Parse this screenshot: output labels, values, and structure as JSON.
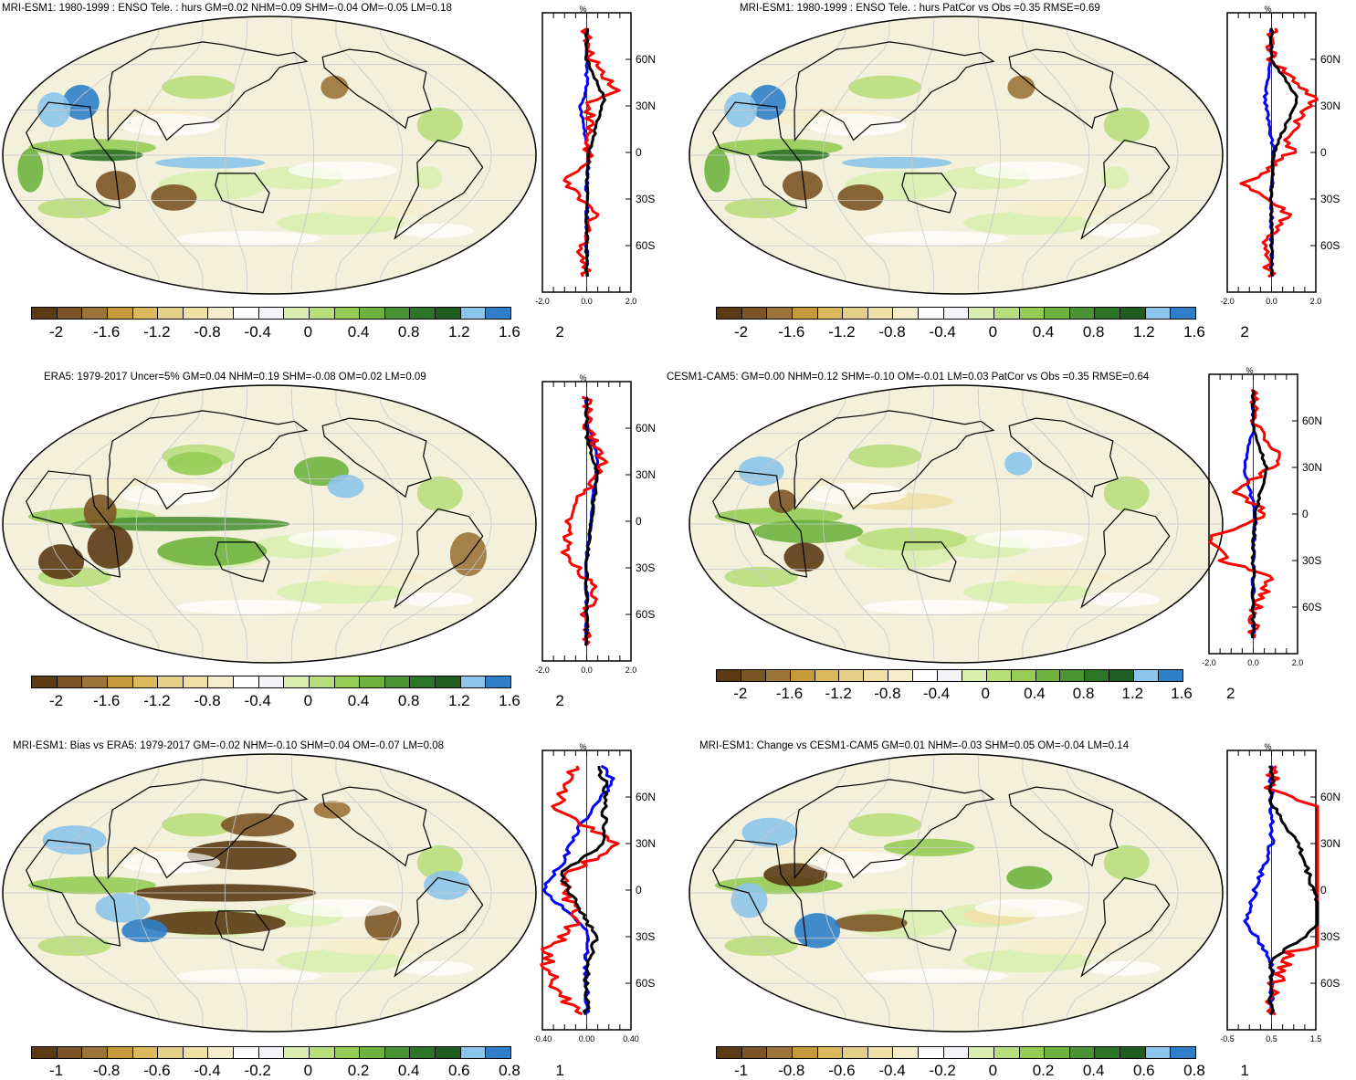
{
  "palette": [
    "#5b3a14",
    "#7b5526",
    "#9a7438",
    "#c49a3a",
    "#d9b95c",
    "#e6cf87",
    "#efe0a8",
    "#f6edcc",
    "#ffffff",
    "#f4f4f8",
    "#d9eeb0",
    "#b9de7c",
    "#95cc55",
    "#6fb23f",
    "#4a9233",
    "#2c7426",
    "#1f5d20",
    "#8dc4ea",
    "#2f7fc8"
  ],
  "profile_colors": {
    "red": "#ff0000",
    "blue": "#0000ff",
    "black": "#000000"
  },
  "panels": [
    {
      "id": "p1",
      "title": "MRI-ESM1: 1980-1999 : ENSO Tele. : hurs GM=0.02 NHM=0.09 SHM=-0.04 OM=-0.05 LM=0.18",
      "cb_labels": [
        "-2",
        "-1.6",
        "-1.2",
        "-0.8",
        "-0.4",
        "0",
        "0.4",
        "0.8",
        "1.2",
        "1.6",
        "2"
      ],
      "lat_labels": [
        "60N",
        "30N",
        "0",
        "30S",
        "60S"
      ],
      "x_labels": [
        "-2.0",
        "0.0",
        "2.0"
      ],
      "unit": "%"
    },
    {
      "id": "p2",
      "title": "MRI-ESM1: 1980-1999 : ENSO Tele. : hurs PatCor vs Obs =0.35 RMSE=0.69",
      "cb_labels": [
        "-2",
        "-1.6",
        "-1.2",
        "-0.8",
        "-0.4",
        "0",
        "0.4",
        "0.8",
        "1.2",
        "1.6",
        "2"
      ],
      "lat_labels": [
        "60N",
        "30N",
        "0",
        "30S",
        "60S"
      ],
      "x_labels": [
        "-2.0",
        "0.0",
        "2.0"
      ],
      "unit": "%"
    },
    {
      "id": "p3",
      "title": "ERA5: 1979-2017 Uncer=5% GM=0.04 NHM=0.19 SHM=-0.08 OM=0.02 LM=0.09",
      "cb_labels": [
        "-2",
        "-1.6",
        "-1.2",
        "-0.8",
        "-0.4",
        "0",
        "0.4",
        "0.8",
        "1.2",
        "1.6",
        "2"
      ],
      "lat_labels": [
        "60N",
        "30N",
        "0",
        "30S",
        "60S"
      ],
      "x_labels": [
        "-2.0",
        "0.0",
        "2.0"
      ],
      "unit": "%"
    },
    {
      "id": "p4",
      "title": "CESM1-CAM5: GM=0.00 NHM=0.12 SHM=-0.10 OM=-0.01 LM=0.03 PatCor vs Obs =0.35 RMSE=0.64",
      "cb_labels": [
        "-2",
        "-1.6",
        "-1.2",
        "-0.8",
        "-0.4",
        "0",
        "0.4",
        "0.8",
        "1.2",
        "1.6",
        "2"
      ],
      "lat_labels": [
        "60N",
        "30N",
        "0",
        "30S",
        "60S"
      ],
      "x_labels": [
        "-2.0",
        "0.0",
        "2.0"
      ],
      "unit": "%"
    },
    {
      "id": "p5",
      "title": "MRI-ESM1: Bias vs ERA5: 1979-2017 GM=-0.02 NHM=-0.10 SHM=0.04 OM=-0.07 LM=0.08",
      "cb_labels": [
        "-1",
        "-0.8",
        "-0.6",
        "-0.4",
        "-0.2",
        "0",
        "0.2",
        "0.4",
        "0.6",
        "0.8",
        "1"
      ],
      "lat_labels": [
        "60N",
        "30N",
        "0",
        "30S",
        "60S"
      ],
      "x_labels": [
        "-0.40",
        "0.00",
        "0.40"
      ],
      "unit": "%"
    },
    {
      "id": "p6",
      "title": "MRI-ESM1: Change vs CESM1-CAM5 GM=0.01 NHM=-0.03 SHM=0.05 OM=-0.04 LM=0.14",
      "cb_labels": [
        "-1",
        "-0.8",
        "-0.6",
        "-0.4",
        "-0.2",
        "0",
        "0.2",
        "0.4",
        "0.6",
        "0.8",
        "1"
      ],
      "lat_labels": [
        "60N",
        "30N",
        "0",
        "30S",
        "60S"
      ],
      "x_labels": [
        "-0.5",
        "0.5",
        "1.5"
      ],
      "unit": "%"
    }
  ]
}
